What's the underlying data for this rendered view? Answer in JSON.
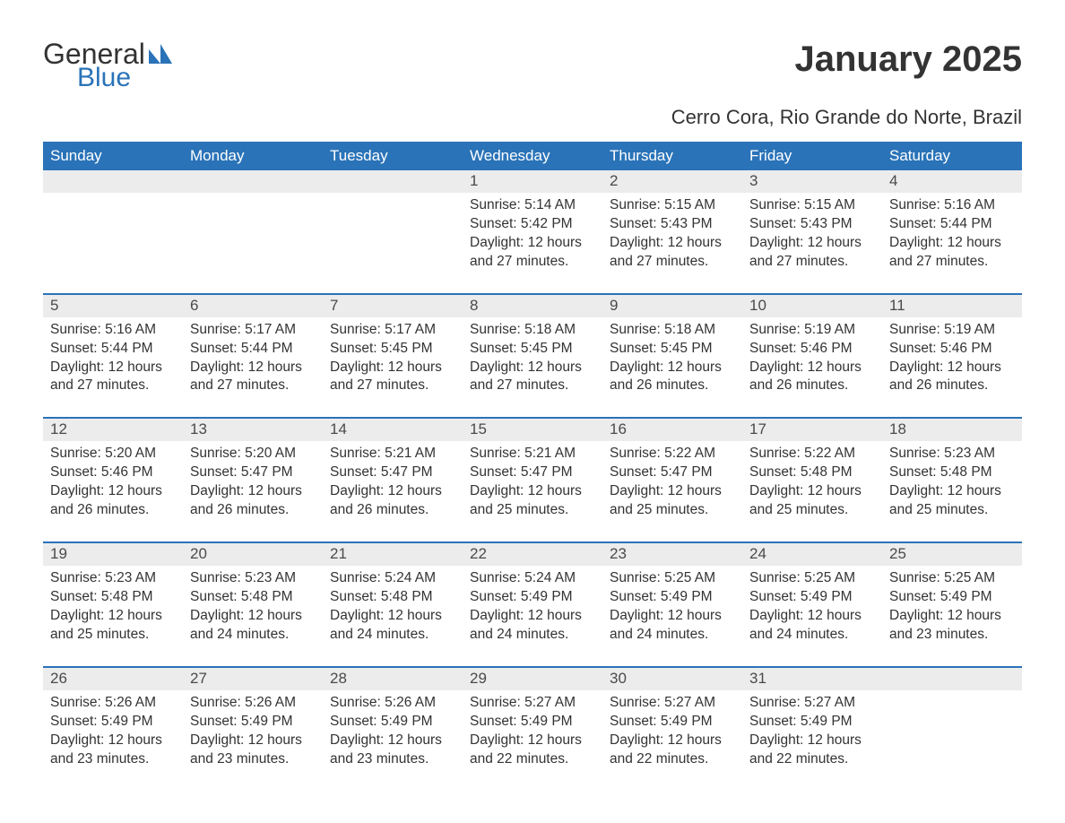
{
  "logo": {
    "word1": "General",
    "word2": "Blue",
    "text_color": "#333333",
    "accent_color": "#2a73b8"
  },
  "header": {
    "title": "January 2025",
    "location": "Cerro Cora, Rio Grande do Norte, Brazil",
    "title_fontsize": 40,
    "location_fontsize": 22
  },
  "calendar": {
    "type": "table",
    "header_bg": "#2a73b8",
    "header_text_color": "#ffffff",
    "daynum_bg": "#ececec",
    "rule_color": "#2a73b8",
    "body_text_color": "#333333",
    "body_fontsize": 15.5,
    "weekday_fontsize": 17,
    "weekdays": [
      "Sunday",
      "Monday",
      "Tuesday",
      "Wednesday",
      "Thursday",
      "Friday",
      "Saturday"
    ],
    "weeks": [
      [
        {
          "num": "",
          "sunrise": "",
          "sunset": "",
          "daylight1": "",
          "daylight2": ""
        },
        {
          "num": "",
          "sunrise": "",
          "sunset": "",
          "daylight1": "",
          "daylight2": ""
        },
        {
          "num": "",
          "sunrise": "",
          "sunset": "",
          "daylight1": "",
          "daylight2": ""
        },
        {
          "num": "1",
          "sunrise": "Sunrise: 5:14 AM",
          "sunset": "Sunset: 5:42 PM",
          "daylight1": "Daylight: 12 hours",
          "daylight2": "and 27 minutes."
        },
        {
          "num": "2",
          "sunrise": "Sunrise: 5:15 AM",
          "sunset": "Sunset: 5:43 PM",
          "daylight1": "Daylight: 12 hours",
          "daylight2": "and 27 minutes."
        },
        {
          "num": "3",
          "sunrise": "Sunrise: 5:15 AM",
          "sunset": "Sunset: 5:43 PM",
          "daylight1": "Daylight: 12 hours",
          "daylight2": "and 27 minutes."
        },
        {
          "num": "4",
          "sunrise": "Sunrise: 5:16 AM",
          "sunset": "Sunset: 5:44 PM",
          "daylight1": "Daylight: 12 hours",
          "daylight2": "and 27 minutes."
        }
      ],
      [
        {
          "num": "5",
          "sunrise": "Sunrise: 5:16 AM",
          "sunset": "Sunset: 5:44 PM",
          "daylight1": "Daylight: 12 hours",
          "daylight2": "and 27 minutes."
        },
        {
          "num": "6",
          "sunrise": "Sunrise: 5:17 AM",
          "sunset": "Sunset: 5:44 PM",
          "daylight1": "Daylight: 12 hours",
          "daylight2": "and 27 minutes."
        },
        {
          "num": "7",
          "sunrise": "Sunrise: 5:17 AM",
          "sunset": "Sunset: 5:45 PM",
          "daylight1": "Daylight: 12 hours",
          "daylight2": "and 27 minutes."
        },
        {
          "num": "8",
          "sunrise": "Sunrise: 5:18 AM",
          "sunset": "Sunset: 5:45 PM",
          "daylight1": "Daylight: 12 hours",
          "daylight2": "and 27 minutes."
        },
        {
          "num": "9",
          "sunrise": "Sunrise: 5:18 AM",
          "sunset": "Sunset: 5:45 PM",
          "daylight1": "Daylight: 12 hours",
          "daylight2": "and 26 minutes."
        },
        {
          "num": "10",
          "sunrise": "Sunrise: 5:19 AM",
          "sunset": "Sunset: 5:46 PM",
          "daylight1": "Daylight: 12 hours",
          "daylight2": "and 26 minutes."
        },
        {
          "num": "11",
          "sunrise": "Sunrise: 5:19 AM",
          "sunset": "Sunset: 5:46 PM",
          "daylight1": "Daylight: 12 hours",
          "daylight2": "and 26 minutes."
        }
      ],
      [
        {
          "num": "12",
          "sunrise": "Sunrise: 5:20 AM",
          "sunset": "Sunset: 5:46 PM",
          "daylight1": "Daylight: 12 hours",
          "daylight2": "and 26 minutes."
        },
        {
          "num": "13",
          "sunrise": "Sunrise: 5:20 AM",
          "sunset": "Sunset: 5:47 PM",
          "daylight1": "Daylight: 12 hours",
          "daylight2": "and 26 minutes."
        },
        {
          "num": "14",
          "sunrise": "Sunrise: 5:21 AM",
          "sunset": "Sunset: 5:47 PM",
          "daylight1": "Daylight: 12 hours",
          "daylight2": "and 26 minutes."
        },
        {
          "num": "15",
          "sunrise": "Sunrise: 5:21 AM",
          "sunset": "Sunset: 5:47 PM",
          "daylight1": "Daylight: 12 hours",
          "daylight2": "and 25 minutes."
        },
        {
          "num": "16",
          "sunrise": "Sunrise: 5:22 AM",
          "sunset": "Sunset: 5:47 PM",
          "daylight1": "Daylight: 12 hours",
          "daylight2": "and 25 minutes."
        },
        {
          "num": "17",
          "sunrise": "Sunrise: 5:22 AM",
          "sunset": "Sunset: 5:48 PM",
          "daylight1": "Daylight: 12 hours",
          "daylight2": "and 25 minutes."
        },
        {
          "num": "18",
          "sunrise": "Sunrise: 5:23 AM",
          "sunset": "Sunset: 5:48 PM",
          "daylight1": "Daylight: 12 hours",
          "daylight2": "and 25 minutes."
        }
      ],
      [
        {
          "num": "19",
          "sunrise": "Sunrise: 5:23 AM",
          "sunset": "Sunset: 5:48 PM",
          "daylight1": "Daylight: 12 hours",
          "daylight2": "and 25 minutes."
        },
        {
          "num": "20",
          "sunrise": "Sunrise: 5:23 AM",
          "sunset": "Sunset: 5:48 PM",
          "daylight1": "Daylight: 12 hours",
          "daylight2": "and 24 minutes."
        },
        {
          "num": "21",
          "sunrise": "Sunrise: 5:24 AM",
          "sunset": "Sunset: 5:48 PM",
          "daylight1": "Daylight: 12 hours",
          "daylight2": "and 24 minutes."
        },
        {
          "num": "22",
          "sunrise": "Sunrise: 5:24 AM",
          "sunset": "Sunset: 5:49 PM",
          "daylight1": "Daylight: 12 hours",
          "daylight2": "and 24 minutes."
        },
        {
          "num": "23",
          "sunrise": "Sunrise: 5:25 AM",
          "sunset": "Sunset: 5:49 PM",
          "daylight1": "Daylight: 12 hours",
          "daylight2": "and 24 minutes."
        },
        {
          "num": "24",
          "sunrise": "Sunrise: 5:25 AM",
          "sunset": "Sunset: 5:49 PM",
          "daylight1": "Daylight: 12 hours",
          "daylight2": "and 24 minutes."
        },
        {
          "num": "25",
          "sunrise": "Sunrise: 5:25 AM",
          "sunset": "Sunset: 5:49 PM",
          "daylight1": "Daylight: 12 hours",
          "daylight2": "and 23 minutes."
        }
      ],
      [
        {
          "num": "26",
          "sunrise": "Sunrise: 5:26 AM",
          "sunset": "Sunset: 5:49 PM",
          "daylight1": "Daylight: 12 hours",
          "daylight2": "and 23 minutes."
        },
        {
          "num": "27",
          "sunrise": "Sunrise: 5:26 AM",
          "sunset": "Sunset: 5:49 PM",
          "daylight1": "Daylight: 12 hours",
          "daylight2": "and 23 minutes."
        },
        {
          "num": "28",
          "sunrise": "Sunrise: 5:26 AM",
          "sunset": "Sunset: 5:49 PM",
          "daylight1": "Daylight: 12 hours",
          "daylight2": "and 23 minutes."
        },
        {
          "num": "29",
          "sunrise": "Sunrise: 5:27 AM",
          "sunset": "Sunset: 5:49 PM",
          "daylight1": "Daylight: 12 hours",
          "daylight2": "and 22 minutes."
        },
        {
          "num": "30",
          "sunrise": "Sunrise: 5:27 AM",
          "sunset": "Sunset: 5:49 PM",
          "daylight1": "Daylight: 12 hours",
          "daylight2": "and 22 minutes."
        },
        {
          "num": "31",
          "sunrise": "Sunrise: 5:27 AM",
          "sunset": "Sunset: 5:49 PM",
          "daylight1": "Daylight: 12 hours",
          "daylight2": "and 22 minutes."
        },
        {
          "num": "",
          "sunrise": "",
          "sunset": "",
          "daylight1": "",
          "daylight2": ""
        }
      ]
    ]
  }
}
